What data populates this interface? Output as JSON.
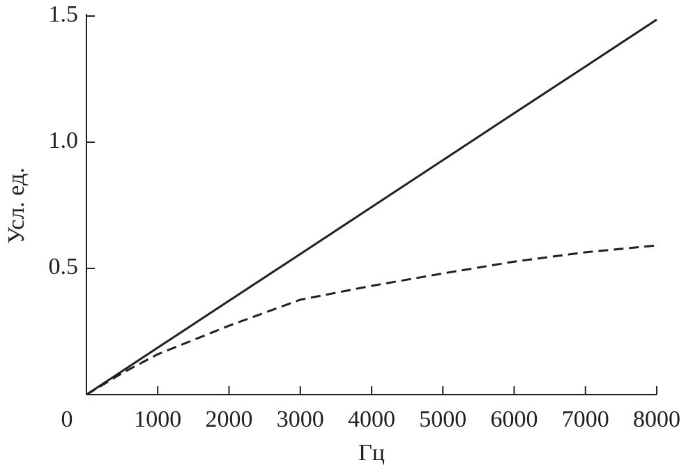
{
  "chart_data": {
    "type": "line",
    "x_label": "Гц",
    "y_label": "Усл. ед.",
    "x": [
      0,
      500,
      1000,
      2000,
      3000,
      4000,
      5000,
      6000,
      7000,
      8000
    ],
    "series": [
      {
        "color": "#231f20",
        "style": "solid",
        "values": [
          0,
          0.093,
          0.186,
          0.372,
          0.557,
          0.743,
          0.929,
          1.115,
          1.3,
          1.486
        ]
      },
      {
        "color": "#231f20",
        "style": "dashed",
        "values": [
          0,
          0.085,
          0.16,
          0.273,
          0.376,
          0.431,
          0.48,
          0.527,
          0.564,
          0.591
        ]
      }
    ],
    "xlim": [
      0,
      8000
    ],
    "ylim": [
      0,
      1.5
    ],
    "xticks": [
      0,
      1000,
      2000,
      3000,
      4000,
      5000,
      6000,
      7000,
      8000
    ],
    "yticks": [
      0.5,
      {
        "value": 1,
        "label": "1.0"
      },
      1.5
    ],
    "grid": false
  }
}
